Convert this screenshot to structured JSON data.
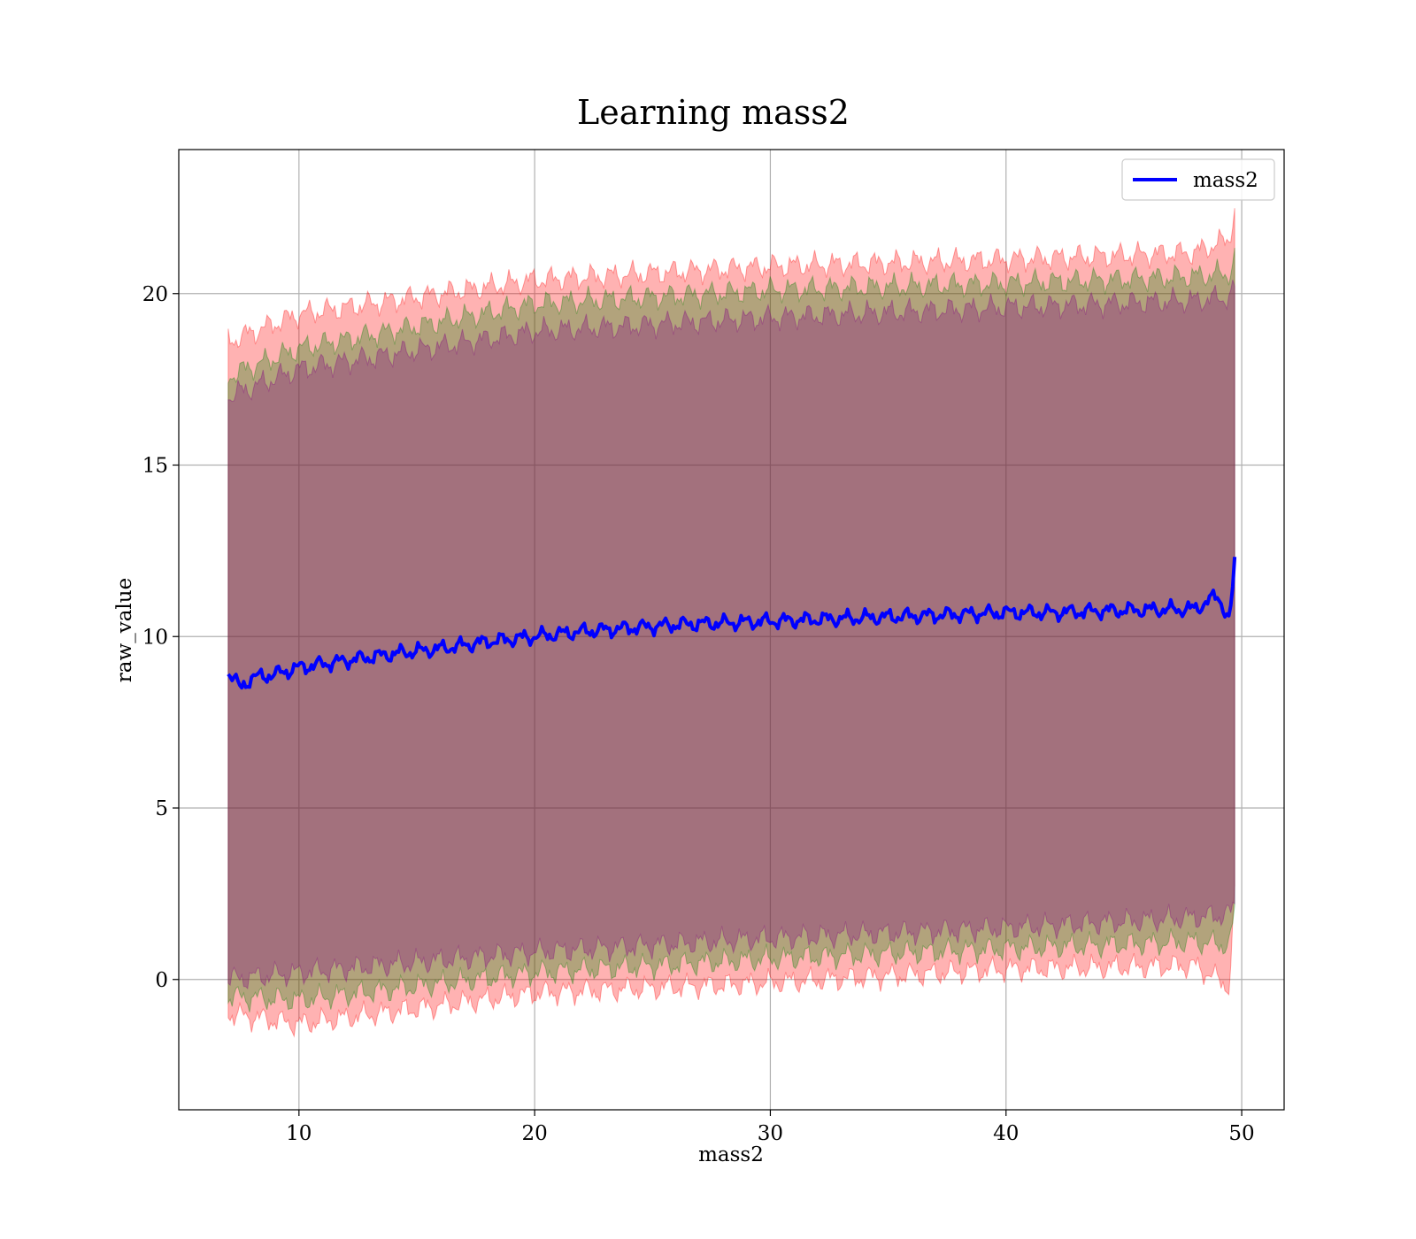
{
  "chart_data": {
    "type": "line",
    "title": "Learning mass2",
    "xlabel": "mass2",
    "ylabel": "raw_value",
    "xlim": [
      4.9,
      51.8
    ],
    "ylim": [
      -3.8,
      24.2
    ],
    "x_ticks": [
      10,
      20,
      30,
      40,
      50
    ],
    "y_ticks": [
      0,
      5,
      10,
      15,
      20
    ],
    "grid": true,
    "legend": {
      "placement": "top-right",
      "entries": [
        "mass2"
      ]
    },
    "x_range": [
      7.0,
      49.7
    ],
    "series": [
      {
        "name": "mass2",
        "color": "#0000ff",
        "points": [
          [
            7.0,
            9.0
          ],
          [
            7.5,
            8.5
          ],
          [
            8.0,
            8.8
          ],
          [
            9.0,
            8.9
          ],
          [
            10.0,
            9.1
          ],
          [
            12.0,
            9.3
          ],
          [
            14.0,
            9.5
          ],
          [
            16.0,
            9.65
          ],
          [
            18.0,
            9.85
          ],
          [
            20.0,
            10.0
          ],
          [
            22.0,
            10.15
          ],
          [
            24.0,
            10.25
          ],
          [
            26.0,
            10.35
          ],
          [
            28.0,
            10.4
          ],
          [
            30.0,
            10.45
          ],
          [
            32.0,
            10.5
          ],
          [
            34.0,
            10.55
          ],
          [
            36.0,
            10.6
          ],
          [
            38.0,
            10.65
          ],
          [
            40.0,
            10.7
          ],
          [
            42.0,
            10.7
          ],
          [
            44.0,
            10.75
          ],
          [
            46.0,
            10.78
          ],
          [
            48.0,
            10.8
          ],
          [
            49.0,
            11.2
          ],
          [
            49.5,
            10.4
          ],
          [
            49.7,
            12.2
          ]
        ]
      }
    ],
    "bands": [
      {
        "color": "#ff0000",
        "opacity": 0.3,
        "upper": [
          [
            7.0,
            18.6
          ],
          [
            10.0,
            19.4
          ],
          [
            20.0,
            20.4
          ],
          [
            30.0,
            20.8
          ],
          [
            40.0,
            21.0
          ],
          [
            48.0,
            21.2
          ],
          [
            49.5,
            21.6
          ],
          [
            49.7,
            22.6
          ]
        ],
        "lower": [
          [
            7.0,
            -1.0
          ],
          [
            10.0,
            -1.3
          ],
          [
            20.0,
            -0.4
          ],
          [
            30.0,
            -0.1
          ],
          [
            40.0,
            0.3
          ],
          [
            48.0,
            0.4
          ],
          [
            49.5,
            -0.2
          ],
          [
            49.7,
            2.6
          ]
        ]
      },
      {
        "color": "#008000",
        "opacity": 0.3,
        "upper": [
          [
            7.0,
            17.6
          ],
          [
            10.0,
            18.4
          ],
          [
            20.0,
            19.7
          ],
          [
            30.0,
            20.1
          ],
          [
            40.0,
            20.3
          ],
          [
            48.0,
            20.5
          ],
          [
            49.5,
            20.6
          ],
          [
            49.7,
            21.0
          ]
        ],
        "lower": [
          [
            7.0,
            -0.5
          ],
          [
            10.0,
            -0.6
          ],
          [
            20.0,
            0.2
          ],
          [
            30.0,
            0.6
          ],
          [
            40.0,
            0.9
          ],
          [
            48.0,
            1.1
          ],
          [
            49.5,
            1.0
          ],
          [
            49.7,
            2.0
          ]
        ]
      },
      {
        "color": "#800080",
        "opacity": 0.3,
        "upper": [
          [
            7.0,
            17.0
          ],
          [
            10.0,
            17.8
          ],
          [
            20.0,
            18.9
          ],
          [
            30.0,
            19.3
          ],
          [
            40.0,
            19.6
          ],
          [
            48.0,
            19.8
          ],
          [
            49.5,
            19.9
          ],
          [
            49.7,
            20.2
          ]
        ],
        "lower": [
          [
            7.0,
            0.0
          ],
          [
            10.0,
            0.2
          ],
          [
            20.0,
            0.8
          ],
          [
            30.0,
            1.2
          ],
          [
            40.0,
            1.5
          ],
          [
            48.0,
            1.8
          ],
          [
            49.5,
            1.9
          ],
          [
            49.7,
            2.2
          ]
        ]
      }
    ]
  }
}
